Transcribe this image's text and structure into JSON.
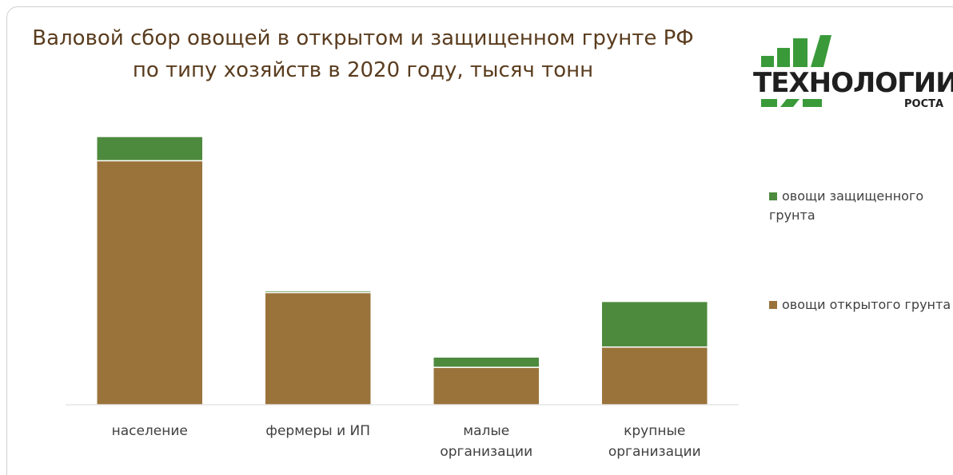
{
  "chart_data": {
    "type": "stacked_bar",
    "title": "Валовой сбор овощей в открытом и защищенном грунте РФ по типу хозяйств в 2020 году, тысяч тонн",
    "categories": [
      "население",
      "фермеры и ИП",
      "малые организации",
      "крупные организации"
    ],
    "series": [
      {
        "name": "овощи открытого грунта",
        "color": "#9a733b",
        "values": [
          6850,
          3150,
          1050,
          1620
        ]
      },
      {
        "name": "овощи защищенного грунта",
        "color": "#4e8a3e",
        "values": [
          680,
          50,
          290,
          1280
        ]
      }
    ],
    "ylim": [
      0,
      8000
    ],
    "legend": "right"
  },
  "logo": {
    "line1": "ТЕХНОЛОГИИ",
    "line2": "РОСТА"
  }
}
